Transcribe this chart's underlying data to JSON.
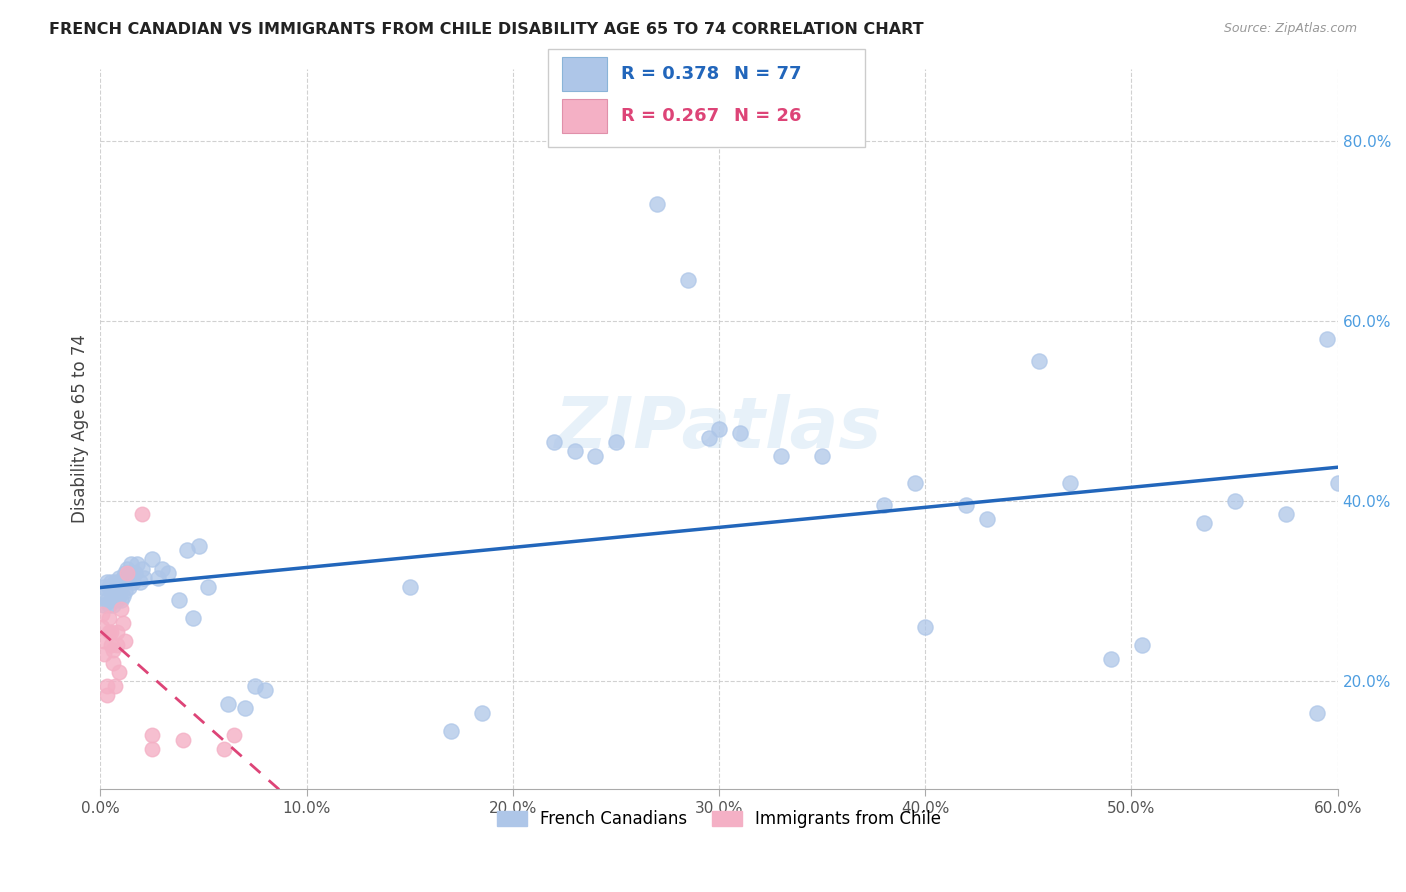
{
  "title": "FRENCH CANADIAN VS IMMIGRANTS FROM CHILE DISABILITY AGE 65 TO 74 CORRELATION CHART",
  "source": "Source: ZipAtlas.com",
  "ylabel": "Disability Age 65 to 74",
  "xlim": [
    0.0,
    0.6
  ],
  "ylim": [
    0.08,
    0.88
  ],
  "watermark": "ZIPatlas",
  "series1_label": "French Canadians",
  "series1_R": 0.378,
  "series1_N": 77,
  "series1_color": "#aec6e8",
  "series1_line_color": "#2266bb",
  "series2_label": "Immigrants from Chile",
  "series2_R": 0.267,
  "series2_N": 26,
  "series2_color": "#f4b0c5",
  "series2_line_color": "#dd4477",
  "blue_x": [
    0.001,
    0.002,
    0.002,
    0.003,
    0.003,
    0.004,
    0.004,
    0.005,
    0.005,
    0.006,
    0.006,
    0.007,
    0.007,
    0.008,
    0.008,
    0.009,
    0.009,
    0.01,
    0.01,
    0.011,
    0.011,
    0.012,
    0.012,
    0.013,
    0.013,
    0.014,
    0.014,
    0.015,
    0.015,
    0.016,
    0.017,
    0.018,
    0.019,
    0.02,
    0.021,
    0.025,
    0.028,
    0.03,
    0.033,
    0.038,
    0.042,
    0.045,
    0.048,
    0.052,
    0.062,
    0.07,
    0.075,
    0.08,
    0.15,
    0.17,
    0.185,
    0.22,
    0.23,
    0.24,
    0.25,
    0.27,
    0.285,
    0.295,
    0.3,
    0.31,
    0.33,
    0.35,
    0.38,
    0.395,
    0.4,
    0.42,
    0.43,
    0.455,
    0.47,
    0.49,
    0.505,
    0.535,
    0.55,
    0.575,
    0.59,
    0.6,
    0.595
  ],
  "blue_y": [
    0.295,
    0.285,
    0.305,
    0.29,
    0.31,
    0.285,
    0.305,
    0.29,
    0.31,
    0.285,
    0.3,
    0.295,
    0.31,
    0.29,
    0.305,
    0.295,
    0.315,
    0.29,
    0.305,
    0.295,
    0.315,
    0.3,
    0.32,
    0.31,
    0.325,
    0.305,
    0.32,
    0.315,
    0.33,
    0.31,
    0.32,
    0.33,
    0.31,
    0.325,
    0.315,
    0.335,
    0.315,
    0.325,
    0.32,
    0.29,
    0.345,
    0.27,
    0.35,
    0.305,
    0.175,
    0.17,
    0.195,
    0.19,
    0.305,
    0.145,
    0.165,
    0.465,
    0.455,
    0.45,
    0.465,
    0.73,
    0.645,
    0.47,
    0.48,
    0.475,
    0.45,
    0.45,
    0.395,
    0.42,
    0.26,
    0.395,
    0.38,
    0.555,
    0.42,
    0.225,
    0.24,
    0.375,
    0.4,
    0.385,
    0.165,
    0.42,
    0.58
  ],
  "pink_x": [
    0.001,
    0.001,
    0.002,
    0.002,
    0.003,
    0.003,
    0.004,
    0.004,
    0.005,
    0.005,
    0.006,
    0.006,
    0.007,
    0.008,
    0.008,
    0.009,
    0.01,
    0.011,
    0.012,
    0.013,
    0.02,
    0.025,
    0.025,
    0.04,
    0.06,
    0.065
  ],
  "pink_y": [
    0.26,
    0.275,
    0.23,
    0.245,
    0.195,
    0.185,
    0.255,
    0.27,
    0.24,
    0.255,
    0.22,
    0.235,
    0.195,
    0.24,
    0.255,
    0.21,
    0.28,
    0.265,
    0.245,
    0.32,
    0.385,
    0.125,
    0.14,
    0.135,
    0.125,
    0.14
  ],
  "legend_R1_text": "R = 0.378",
  "legend_N1_text": "N = 77",
  "legend_R2_text": "R = 0.267",
  "legend_N2_text": "N = 26",
  "legend_color1": "#2266bb",
  "legend_color2": "#dd4477"
}
